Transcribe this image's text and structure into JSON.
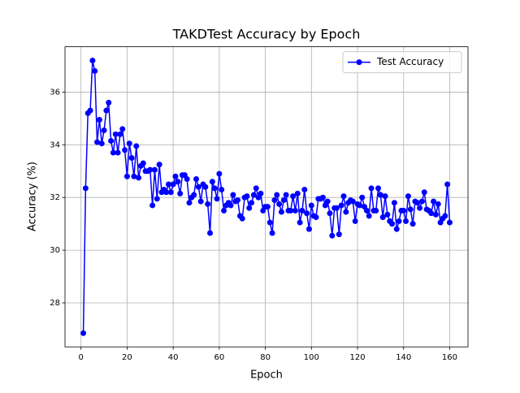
{
  "chart_data": {
    "type": "line",
    "title": "TAKDTest Accuracy by Epoch",
    "xlabel": "Epoch",
    "ylabel": "Accuracy (%)",
    "x": [
      1,
      2,
      3,
      4,
      5,
      6,
      7,
      8,
      9,
      10,
      11,
      12,
      13,
      14,
      15,
      16,
      17,
      18,
      19,
      20,
      21,
      22,
      23,
      24,
      25,
      26,
      27,
      28,
      29,
      30,
      31,
      32,
      33,
      34,
      35,
      36,
      37,
      38,
      39,
      40,
      41,
      42,
      43,
      44,
      45,
      46,
      47,
      48,
      49,
      50,
      51,
      52,
      53,
      54,
      55,
      56,
      57,
      58,
      59,
      60,
      61,
      62,
      63,
      64,
      65,
      66,
      67,
      68,
      69,
      70,
      71,
      72,
      73,
      74,
      75,
      76,
      77,
      78,
      79,
      80,
      81,
      82,
      83,
      84,
      85,
      86,
      87,
      88,
      89,
      90,
      91,
      92,
      93,
      94,
      95,
      96,
      97,
      98,
      99,
      100,
      101,
      102,
      103,
      104,
      105,
      106,
      107,
      108,
      109,
      110,
      111,
      112,
      113,
      114,
      115,
      116,
      117,
      118,
      119,
      120,
      121,
      122,
      123,
      124,
      125,
      126,
      127,
      128,
      129,
      130,
      131,
      132,
      133,
      134,
      135,
      136,
      137,
      138,
      139,
      140,
      141,
      142,
      143,
      144,
      145,
      146,
      147,
      148,
      149,
      150,
      151,
      152,
      153,
      154,
      155,
      156,
      157,
      158,
      159,
      160
    ],
    "series": [
      {
        "name": "Test Accuracy",
        "color": "#0000ff",
        "values": [
          26.85,
          32.35,
          35.2,
          35.3,
          37.2,
          36.8,
          34.1,
          34.95,
          34.05,
          34.55,
          35.3,
          35.6,
          34.15,
          33.7,
          34.4,
          33.7,
          34.4,
          34.6,
          33.8,
          32.8,
          34.05,
          33.5,
          32.8,
          33.95,
          32.75,
          33.2,
          33.3,
          33.0,
          33.0,
          33.05,
          31.7,
          33.05,
          31.95,
          33.25,
          32.2,
          32.3,
          32.2,
          32.5,
          32.2,
          32.5,
          32.8,
          32.6,
          32.15,
          32.85,
          32.85,
          32.7,
          31.8,
          32.0,
          32.1,
          32.7,
          32.4,
          31.85,
          32.5,
          32.4,
          31.75,
          30.65,
          32.6,
          32.35,
          31.95,
          32.9,
          32.3,
          31.5,
          31.7,
          31.8,
          31.7,
          32.1,
          31.85,
          31.9,
          31.3,
          31.2,
          32.0,
          32.05,
          31.6,
          31.8,
          32.1,
          32.35,
          32.0,
          32.15,
          31.5,
          31.65,
          31.65,
          31.05,
          30.65,
          31.9,
          32.1,
          31.75,
          31.45,
          31.9,
          32.1,
          31.5,
          31.5,
          32.05,
          31.5,
          32.15,
          31.05,
          31.5,
          32.3,
          31.4,
          30.8,
          31.7,
          31.3,
          31.25,
          31.95,
          31.95,
          32.0,
          31.7,
          31.85,
          31.4,
          30.55,
          31.6,
          31.6,
          30.6,
          31.7,
          32.05,
          31.45,
          31.8,
          31.9,
          31.85,
          31.1,
          31.75,
          31.7,
          32.0,
          31.65,
          31.5,
          31.3,
          32.35,
          31.5,
          31.5,
          32.35,
          32.1,
          31.25,
          32.05,
          31.35,
          31.1,
          31.0,
          31.8,
          30.8,
          31.1,
          31.5,
          31.5,
          31.1,
          32.05,
          31.55,
          31.0,
          31.85,
          31.8,
          31.6,
          31.85,
          32.2,
          31.55,
          31.5,
          31.4,
          31.85,
          31.35,
          31.75,
          31.05,
          31.2,
          31.3,
          32.5,
          31.05
        ]
      }
    ],
    "xlim": [
      -6.95,
      167.95
    ],
    "ylim": [
      26.33,
      37.72
    ],
    "xticks": [
      0,
      20,
      40,
      60,
      80,
      100,
      120,
      140,
      160
    ],
    "yticks": [
      28,
      30,
      32,
      34,
      36
    ],
    "grid": true,
    "legend": "upper right"
  }
}
